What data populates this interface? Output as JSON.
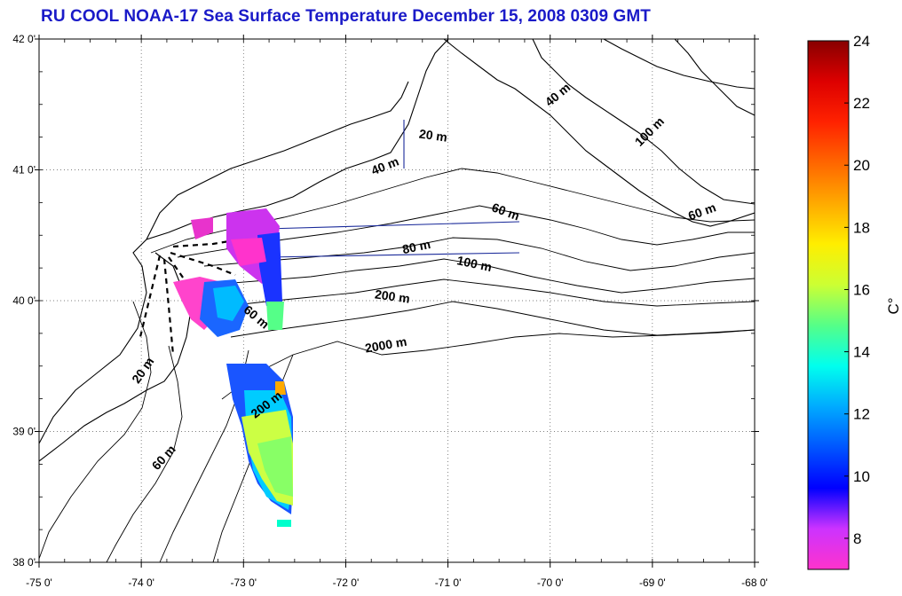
{
  "title": "RU COOL  NOAA-17 Sea Surface Temperature December 15, 2008 0309 GMT",
  "map": {
    "lon_range": [
      -75,
      -68
    ],
    "lat_range": [
      38,
      42
    ],
    "lon_ticks": [
      {
        "value": -75,
        "label": "-75 0'"
      },
      {
        "value": -74,
        "label": "-74 0'"
      },
      {
        "value": -73,
        "label": "-73 0'"
      },
      {
        "value": -72,
        "label": "-72 0'"
      },
      {
        "value": -71,
        "label": "-71 0'"
      },
      {
        "value": -70,
        "label": "-70 0'"
      },
      {
        "value": -69,
        "label": "-69 0'"
      },
      {
        "value": -68,
        "label": "-68 0'"
      }
    ],
    "lat_ticks": [
      {
        "value": 42,
        "label": "42 0'"
      },
      {
        "value": 41,
        "label": "41 0'"
      },
      {
        "value": 40,
        "label": "40 0'"
      },
      {
        "value": 39,
        "label": "39 0'"
      },
      {
        "value": 38,
        "label": "38 0'"
      }
    ],
    "grid": "dotted",
    "contour_labels": [
      {
        "text": "20 m",
        "lon": -71.15,
        "lat": 41.23,
        "angle": 8
      },
      {
        "text": "40 m",
        "lon": -71.6,
        "lat": 41.0,
        "angle": -22
      },
      {
        "text": "40 m",
        "lon": -69.9,
        "lat": 41.55,
        "angle": -40
      },
      {
        "text": "100 m",
        "lon": -69.0,
        "lat": 41.27,
        "angle": -45
      },
      {
        "text": "60 m",
        "lon": -70.45,
        "lat": 40.65,
        "angle": 20
      },
      {
        "text": "60 m",
        "lon": -68.5,
        "lat": 40.65,
        "angle": -20
      },
      {
        "text": "80 m",
        "lon": -71.3,
        "lat": 40.38,
        "angle": -12
      },
      {
        "text": "100 m",
        "lon": -70.75,
        "lat": 40.25,
        "angle": 12
      },
      {
        "text": "200 m",
        "lon": -71.55,
        "lat": 40.0,
        "angle": 8
      },
      {
        "text": "2000 m",
        "lon": -71.6,
        "lat": 39.63,
        "angle": -10
      },
      {
        "text": "60 m",
        "lon": -72.9,
        "lat": 39.85,
        "angle": 40
      },
      {
        "text": "20 m",
        "lon": -73.95,
        "lat": 39.45,
        "angle": -55
      },
      {
        "text": "200 m",
        "lon": -72.75,
        "lat": 39.18,
        "angle": -38
      },
      {
        "text": "60 m",
        "lon": -73.75,
        "lat": 38.78,
        "angle": -48
      }
    ]
  },
  "colorbar": {
    "min": 7,
    "max": 24,
    "ticks": [
      8,
      10,
      12,
      14,
      16,
      18,
      20,
      22,
      24
    ],
    "unit_label": "C°",
    "colors": [
      "#ff33cc",
      "#cc33ff",
      "#0000ff",
      "#0055ff",
      "#00aaff",
      "#00ffee",
      "#55ff88",
      "#ccff33",
      "#ffee00",
      "#ffaa00",
      "#ff6600",
      "#ff2200",
      "#dd0000",
      "#880000"
    ]
  }
}
